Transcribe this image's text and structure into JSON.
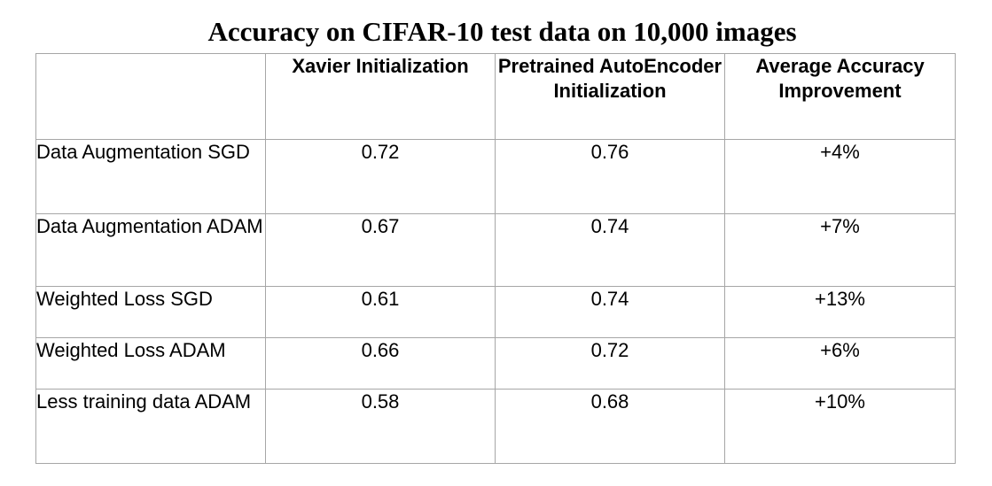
{
  "chart_data": {
    "type": "table",
    "title": "Accuracy on CIFAR-10 test data on 10,000 images",
    "corner_header": "",
    "columns": [
      "Xavier Initialization",
      "Pretrained AutoEncoder Initialization",
      "Average Accuracy Improvement"
    ],
    "rows": [
      {
        "label": "Data Augmentation SGD",
        "values": [
          "0.72",
          "0.76",
          "+4%"
        ]
      },
      {
        "label": "Data Augmentation ADAM",
        "values": [
          "0.67",
          "0.74",
          "+7%"
        ]
      },
      {
        "label": "Weighted Loss SGD",
        "values": [
          "0.61",
          "0.74",
          "+13%"
        ]
      },
      {
        "label": "Weighted Loss ADAM",
        "values": [
          "0.66",
          "0.72",
          "+6%"
        ]
      },
      {
        "label": "Less training data ADAM",
        "values": [
          "0.58",
          "0.68",
          "+10%"
        ]
      }
    ]
  }
}
